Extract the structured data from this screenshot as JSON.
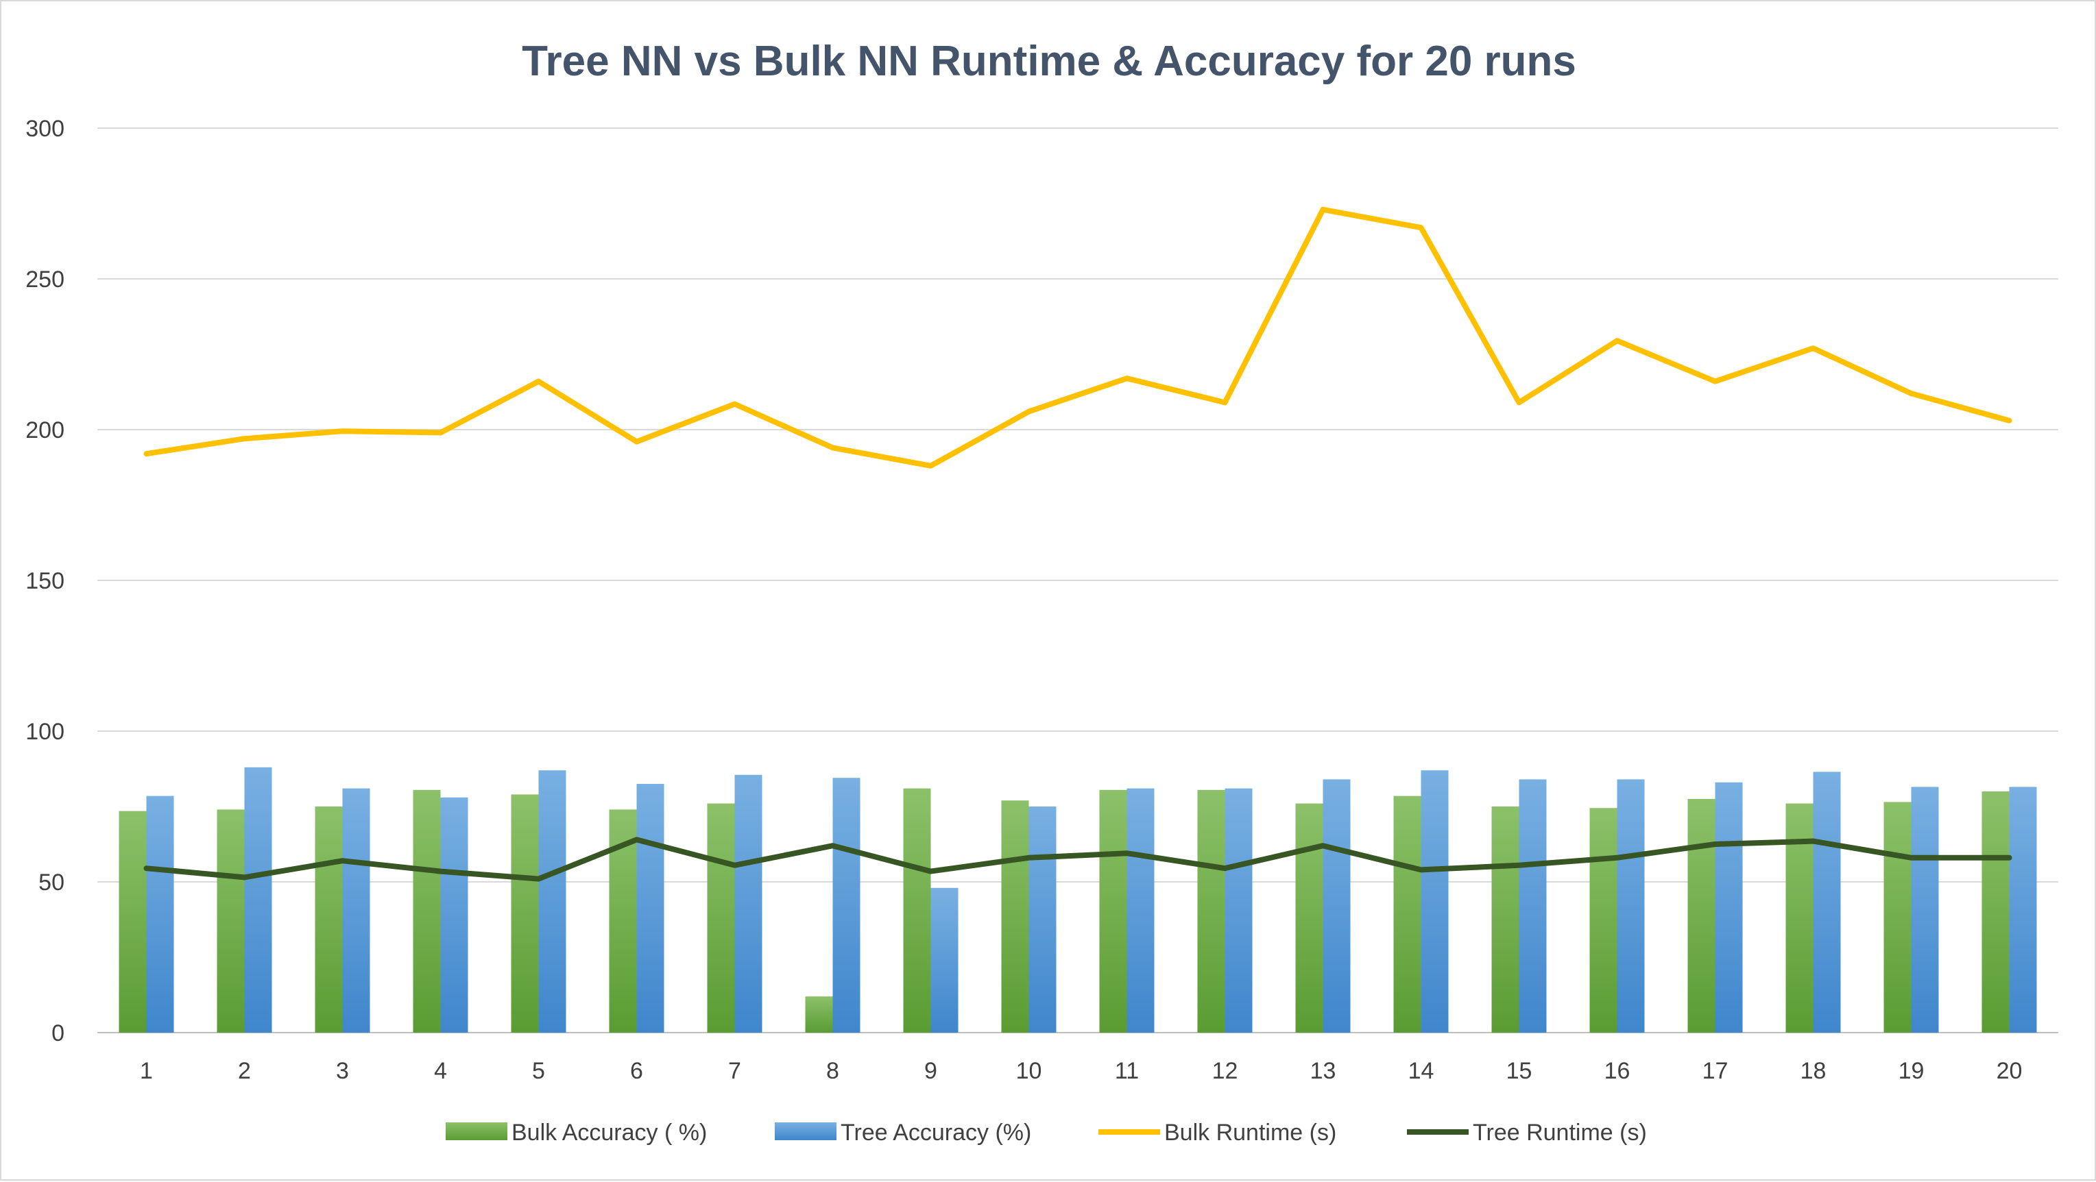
{
  "chart_data": {
    "type": "bar",
    "title": "Tree NN vs Bulk NN Runtime & Accuracy for 20 runs",
    "xlabel": "",
    "ylabel": "",
    "ylim": [
      0,
      300
    ],
    "yticks": [
      "0",
      "50",
      "100",
      "150",
      "200",
      "250",
      "300"
    ],
    "categories": [
      "1",
      "2",
      "3",
      "4",
      "5",
      "6",
      "7",
      "8",
      "9",
      "10",
      "11",
      "12",
      "13",
      "14",
      "15",
      "16",
      "17",
      "18",
      "19",
      "20"
    ],
    "grid": true,
    "legend_position": "bottom",
    "series": [
      {
        "name": "Bulk Accuracy ( %)",
        "kind": "bar",
        "color": "#70ad47",
        "values": [
          73.5,
          74,
          75,
          80.5,
          79,
          74,
          76,
          12,
          81,
          77,
          80.5,
          80.5,
          76,
          78.5,
          75,
          74.5,
          77.5,
          76,
          76.5,
          80
        ]
      },
      {
        "name": "Tree Accuracy (%)",
        "kind": "bar",
        "color": "#5b9bd5",
        "values": [
          78.5,
          88,
          81,
          78,
          87,
          82.5,
          85.5,
          84.5,
          48,
          75,
          81,
          81,
          84,
          87,
          84,
          84,
          83,
          86.5,
          81.5,
          81.5
        ]
      },
      {
        "name": "Bulk Runtime (s)",
        "kind": "line",
        "color": "#ffc000",
        "values": [
          192,
          197,
          199.5,
          199,
          216,
          196,
          208.5,
          194,
          188,
          206,
          217,
          209,
          273,
          267,
          209,
          229.5,
          216,
          227,
          212,
          203
        ]
      },
      {
        "name": "Tree Runtime (s)",
        "kind": "line",
        "color": "#375623",
        "values": [
          54.5,
          51.5,
          57,
          53.5,
          51,
          64,
          55.5,
          62,
          53.5,
          58,
          59.5,
          54.5,
          62,
          54,
          55.5,
          58,
          62.5,
          63.5,
          58,
          58
        ]
      }
    ]
  }
}
